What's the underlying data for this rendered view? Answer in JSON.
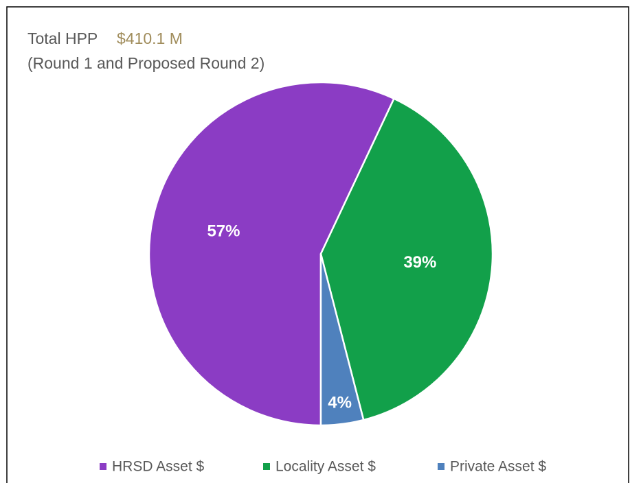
{
  "chart_data": {
    "type": "pie",
    "title": "Total HPP",
    "title_amount": "$410.1 M",
    "subtitle": "(Round 1 and Proposed Round 2)",
    "categories": [
      "HRSD Asset $",
      "Locality Asset $",
      "Private Asset $"
    ],
    "values": [
      57,
      39,
      4
    ],
    "value_labels": [
      "57%",
      "39%",
      "4%"
    ],
    "colors": [
      "#8b3cc4",
      "#12a04a",
      "#4f81bd"
    ],
    "legend": "bottom"
  }
}
